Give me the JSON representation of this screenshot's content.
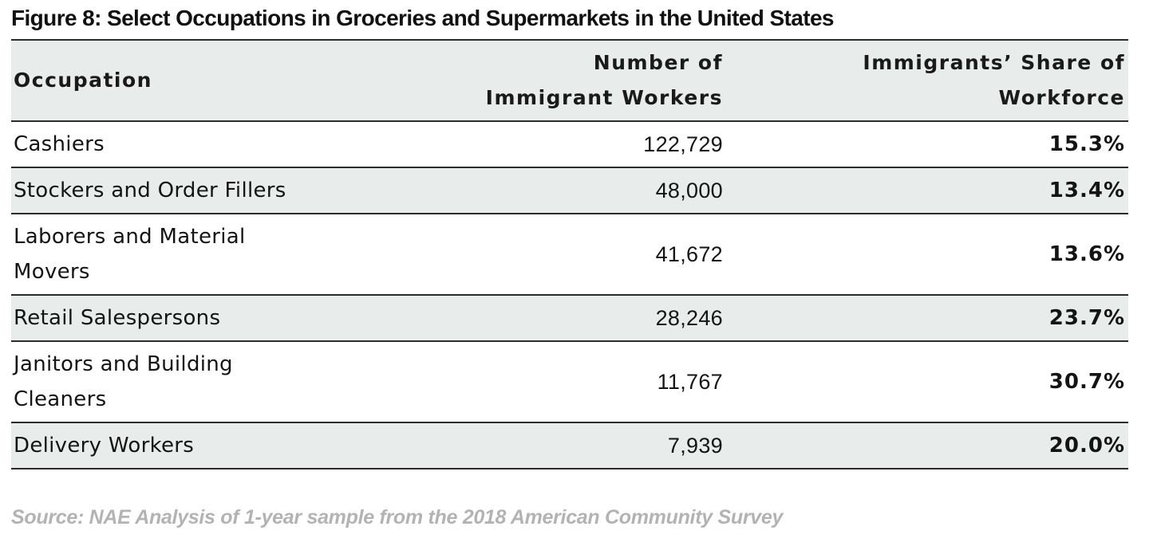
{
  "title": "Figure 8: Select Occupations in Groceries and Supermarkets in the United States",
  "chart_data": {
    "type": "table",
    "columns": [
      "Occupation",
      "Number of Immigrant Workers",
      "Immigrants’ Share of Workforce"
    ],
    "rows": [
      {
        "occupation": "Cashiers",
        "workers": "122,729",
        "share": "15.3%"
      },
      {
        "occupation": "Stockers and Order Fillers",
        "workers": "48,000",
        "share": "13.4%"
      },
      {
        "occupation": "Laborers and Material Movers",
        "workers": "41,672",
        "share": "13.6%"
      },
      {
        "occupation": "Retail Salespersons",
        "workers": "28,246",
        "share": "23.7%"
      },
      {
        "occupation": "Janitors and Building Cleaners",
        "workers": "11,767",
        "share": "30.7%"
      },
      {
        "occupation": "Delivery Workers",
        "workers": "7,939",
        "share": "20.0%"
      }
    ],
    "title": "Figure 8: Select Occupations in Groceries and Supermarkets in the United States"
  },
  "source": "Source: NAE Analysis of 1-year sample from the 2018 American Community Survey",
  "colors": {
    "header_bg": "#e8eceb",
    "shaded_row_bg": "#e8eceb",
    "rule": "#2b2b2b",
    "source_text": "#b3b3b3"
  }
}
